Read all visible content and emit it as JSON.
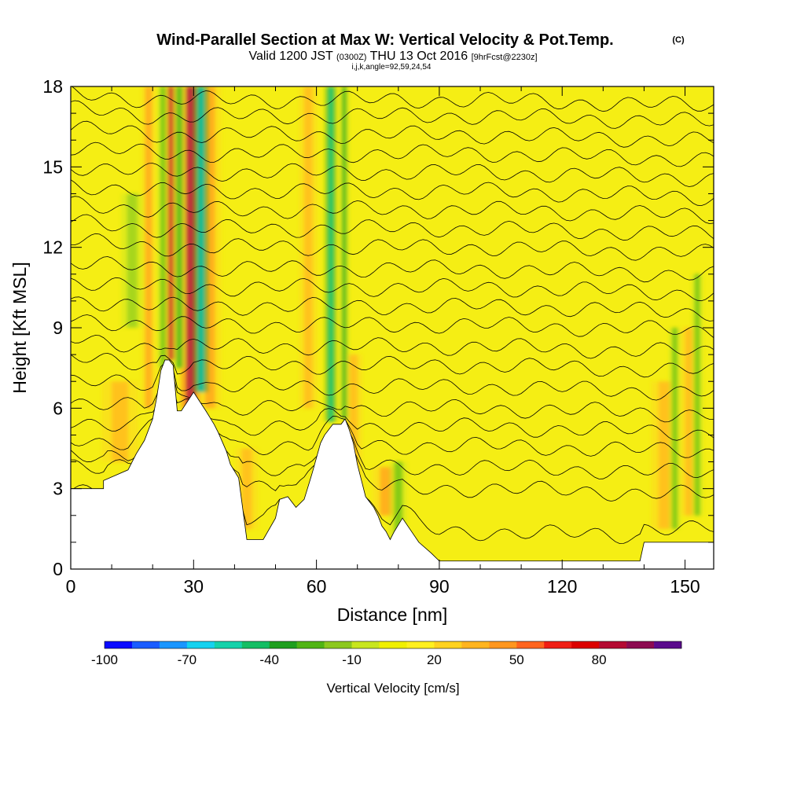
{
  "header": {
    "title": "Wind-Parallel Section at Max W: Vertical Velocity & Pot.Temp.",
    "copyright": "(C)",
    "valid_prefix": "Valid 1200 JST",
    "valid_utc": "(0300Z)",
    "valid_date": "THU 13 Oct 2016",
    "forecast": "[9hrFcst@2230z]",
    "params": "i,j,k,angle=92,59,24,54"
  },
  "chart_data": {
    "type": "heatmap",
    "title": "Wind-Parallel Section at Max W: Vertical Velocity & Pot.Temp.",
    "xlabel": "Distance [nm]",
    "ylabel": "Height [Kft MSL]",
    "xlim": [
      0,
      157
    ],
    "ylim": [
      0,
      18
    ],
    "xticks": [
      "0",
      "30",
      "60",
      "90",
      "120",
      "150"
    ],
    "yticks": [
      "0",
      "3",
      "6",
      "9",
      "12",
      "15",
      "18"
    ],
    "terrain": {
      "x": [
        0,
        8,
        8,
        14,
        16,
        18,
        20,
        21,
        22,
        23,
        24,
        25,
        26,
        27,
        30,
        33,
        35,
        36,
        38,
        39,
        41,
        43,
        47,
        50,
        51,
        53,
        55,
        57,
        59,
        61,
        62,
        63,
        64,
        65,
        66,
        67,
        68,
        69,
        70,
        71,
        72,
        74,
        75,
        76,
        77,
        78,
        79,
        81,
        85,
        88,
        90,
        100,
        115,
        130,
        139,
        140,
        157
      ],
      "y": [
        3.0,
        3.0,
        3.3,
        3.7,
        4.3,
        4.8,
        5.6,
        6.4,
        7.4,
        7.8,
        7.8,
        7.6,
        5.9,
        5.9,
        6.6,
        5.9,
        5.4,
        5.1,
        4.4,
        3.9,
        3.4,
        1.1,
        1.1,
        1.9,
        2.6,
        2.7,
        2.3,
        2.6,
        3.6,
        4.7,
        5.0,
        5.2,
        5.4,
        5.4,
        5.4,
        5.6,
        5.2,
        4.7,
        3.9,
        3.3,
        2.7,
        2.3,
        2.0,
        1.6,
        1.4,
        1.1,
        1.4,
        1.9,
        1.0,
        0.6,
        0.3,
        0.3,
        0.3,
        0.3,
        0.3,
        1.0,
        1.0
      ]
    },
    "updrafts": [
      {
        "x": 12,
        "y0": 4.0,
        "y1": 7.0,
        "w": 4,
        "value": 30
      },
      {
        "x": 19,
        "y0": 6.0,
        "y1": 18.0,
        "w": 1.6,
        "value": 40
      },
      {
        "x": 24.5,
        "y0": 7.8,
        "y1": 18.0,
        "w": 1.5,
        "value": 80
      },
      {
        "x": 29.3,
        "y0": 6.0,
        "y1": 18.0,
        "w": 2.2,
        "value": 90
      },
      {
        "x": 34,
        "y0": 6.0,
        "y1": 18.0,
        "w": 2.5,
        "value": 40
      },
      {
        "x": 43,
        "y0": 1.5,
        "y1": 4.5,
        "w": 2.5,
        "value": 30
      },
      {
        "x": 58,
        "y0": 6.0,
        "y1": 18.0,
        "w": 2.0,
        "value": 30
      },
      {
        "x": 69,
        "y0": 3.0,
        "y1": 8.0,
        "w": 2.0,
        "value": 30
      },
      {
        "x": 77,
        "y0": 2.0,
        "y1": 3.8,
        "w": 3.0,
        "value": 40
      },
      {
        "x": 145,
        "y0": 1.5,
        "y1": 7.0,
        "w": 3.0,
        "value": 30
      },
      {
        "x": 151,
        "y0": 2.0,
        "y1": 9.0,
        "w": 2.0,
        "value": 30
      }
    ],
    "downdrafts": [
      {
        "x": 26.5,
        "y0": 7.5,
        "y1": 18.0,
        "w": 1.5,
        "value": -40
      },
      {
        "x": 31.8,
        "y0": 6.6,
        "y1": 18.0,
        "w": 1.7,
        "value": -70
      },
      {
        "x": 22.5,
        "y0": 7.5,
        "y1": 18.0,
        "w": 1.3,
        "value": -30
      },
      {
        "x": 63.5,
        "y0": 5.5,
        "y1": 18.0,
        "w": 1.4,
        "value": -60
      },
      {
        "x": 66.8,
        "y0": 5.6,
        "y1": 18.0,
        "w": 1.2,
        "value": -40
      },
      {
        "x": 15,
        "y0": 9.0,
        "y1": 14.0,
        "w": 2.5,
        "value": -20
      },
      {
        "x": 147.5,
        "y0": 1.5,
        "y1": 9.0,
        "w": 1.3,
        "value": -30
      },
      {
        "x": 153,
        "y0": 2.0,
        "y1": 11.0,
        "w": 1.3,
        "value": -30
      },
      {
        "x": 80,
        "y0": 1.0,
        "y1": 4.0,
        "w": 2.0,
        "value": -30
      }
    ],
    "contour_heights_kft": [
      1.3,
      3.0,
      3.8,
      4.6,
      5.3,
      6.0,
      6.8,
      7.6,
      8.3,
      9.1,
      9.8,
      10.5,
      11.2,
      12.0,
      12.7,
      13.4,
      14.1,
      14.8,
      15.5,
      16.2,
      16.9,
      17.5
    ],
    "colorbar": {
      "label": "Vertical Velocity [cm/s]",
      "ticks": [
        "-100",
        "-70",
        "-40",
        "-10",
        "20",
        "50",
        "80"
      ],
      "colors": [
        "#0a0aff",
        "#1a5cff",
        "#1a96ff",
        "#14d2f0",
        "#14d2aa",
        "#14be64",
        "#1e9e1e",
        "#50b414",
        "#8cc81e",
        "#c8e61e",
        "#f0f000",
        "#fff01e",
        "#ffd21e",
        "#ffb41e",
        "#ff961e",
        "#ff641e",
        "#f01e14",
        "#dc0000",
        "#b40a32",
        "#8c0a50",
        "#5a0a8c"
      ]
    }
  }
}
